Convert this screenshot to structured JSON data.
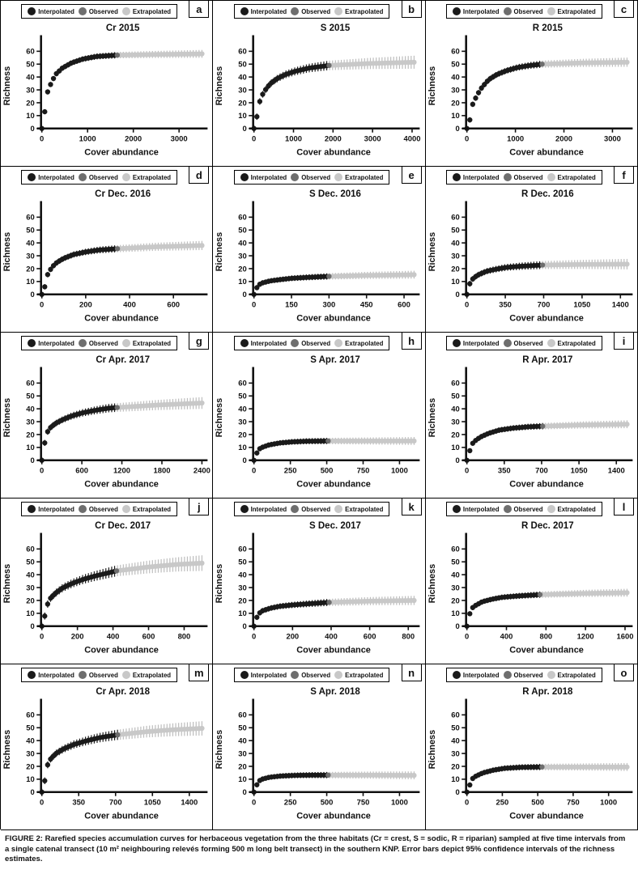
{
  "figure": {
    "caption": "FIGURE 2: Rarefied species accumulation curves for herbaceous vegetation from the three habitats (Cr = crest, S = sodic, R = riparian) sampled at five time intervals from a single catenal transect (10 m² neighbouring relevés forming 500 m long belt transect)  in the southern KNP. Error bars depict 95% confidence intervals of the richness estimates."
  },
  "chart_data": {
    "type": "scatter",
    "layout": {
      "rows": 5,
      "cols": 3,
      "grid_lines": false,
      "legend_position": "top-of-each-panel"
    },
    "xlabel": "Cover abundance",
    "ylabel": "Richness",
    "ylim": [
      0,
      70
    ],
    "yticks": [
      0,
      10,
      20,
      30,
      40,
      50,
      60
    ],
    "legend": [
      {
        "label": "Interpolated",
        "color": "#1a1a1a"
      },
      {
        "label": "Observed",
        "color": "#6e6e6e"
      },
      {
        "label": "Extrapolated",
        "color": "#c8c8c8"
      }
    ],
    "panels": [
      {
        "letter": "a",
        "title": "Cr 2015",
        "xticks": [
          0,
          1000,
          2000,
          3000
        ],
        "xmax": 3500,
        "transition_x": 1650,
        "err_end": 1.5,
        "points": [
          [
            0,
            0
          ],
          [
            30,
            1
          ],
          [
            100,
            26
          ],
          [
            200,
            35
          ],
          [
            300,
            42
          ],
          [
            450,
            47
          ],
          [
            650,
            51
          ],
          [
            900,
            54
          ],
          [
            1200,
            56
          ],
          [
            1650,
            57
          ],
          [
            2400,
            57.5
          ],
          [
            3500,
            58
          ]
        ]
      },
      {
        "letter": "b",
        "title": "S 2015",
        "xticks": [
          0,
          1000,
          2000,
          3000,
          4000
        ],
        "xmax": 4050,
        "transition_x": 1900,
        "err_end": 3.5,
        "points": [
          [
            0,
            0
          ],
          [
            40,
            1
          ],
          [
            110,
            18
          ],
          [
            210,
            26
          ],
          [
            310,
            31
          ],
          [
            420,
            35
          ],
          [
            600,
            39
          ],
          [
            800,
            42
          ],
          [
            1050,
            44.5
          ],
          [
            1400,
            47
          ],
          [
            1900,
            49
          ],
          [
            2900,
            50.5
          ],
          [
            4050,
            51.5
          ]
        ]
      },
      {
        "letter": "c",
        "title": "R 2015",
        "xticks": [
          0,
          1000,
          2000,
          3000
        ],
        "xmax": 3300,
        "transition_x": 1550,
        "err_end": 2,
        "points": [
          [
            0,
            0
          ],
          [
            35,
            1
          ],
          [
            110,
            18
          ],
          [
            210,
            26
          ],
          [
            310,
            32
          ],
          [
            450,
            38
          ],
          [
            620,
            42
          ],
          [
            820,
            45
          ],
          [
            1050,
            47.5
          ],
          [
            1300,
            49
          ],
          [
            1550,
            50
          ],
          [
            2400,
            51
          ],
          [
            3300,
            51.5
          ]
        ]
      },
      {
        "letter": "d",
        "title": "Cr Dec. 2016",
        "xticks": [
          0,
          200,
          400,
          600
        ],
        "xmax": 730,
        "transition_x": 345,
        "err_end": 2,
        "points": [
          [
            0,
            0
          ],
          [
            8,
            1
          ],
          [
            22,
            14
          ],
          [
            45,
            21
          ],
          [
            70,
            25
          ],
          [
            100,
            28
          ],
          [
            145,
            31
          ],
          [
            200,
            33
          ],
          [
            260,
            34.5
          ],
          [
            345,
            35.5
          ],
          [
            520,
            37
          ],
          [
            730,
            38
          ]
        ]
      },
      {
        "letter": "e",
        "title": "S Dec. 2016",
        "xticks": [
          0,
          150,
          300,
          450,
          600
        ],
        "xmax": 640,
        "transition_x": 300,
        "err_end": 1.5,
        "points": [
          [
            0,
            0
          ],
          [
            6,
            1
          ],
          [
            14,
            7
          ],
          [
            35,
            9
          ],
          [
            65,
            10.5
          ],
          [
            105,
            11.5
          ],
          [
            150,
            12.5
          ],
          [
            210,
            13.2
          ],
          [
            300,
            14
          ],
          [
            460,
            14.8
          ],
          [
            640,
            15.3
          ]
        ]
      },
      {
        "letter": "f",
        "title": "R Dec. 2016",
        "xticks": [
          0,
          350,
          700,
          1050,
          1400
        ],
        "xmax": 1460,
        "transition_x": 690,
        "err_end": 2.5,
        "points": [
          [
            0,
            0
          ],
          [
            12,
            1
          ],
          [
            30,
            10
          ],
          [
            65,
            13
          ],
          [
            110,
            15.5
          ],
          [
            180,
            18
          ],
          [
            260,
            19.5
          ],
          [
            360,
            21
          ],
          [
            510,
            22
          ],
          [
            690,
            22.8
          ],
          [
            1050,
            23.3
          ],
          [
            1460,
            23.5
          ]
        ]
      },
      {
        "letter": "g",
        "title": "Cr Apr. 2017",
        "xticks": [
          0,
          600,
          1200,
          1800,
          2400
        ],
        "xmax": 2400,
        "transition_x": 1130,
        "err_end": 3,
        "points": [
          [
            0,
            0
          ],
          [
            20,
            1
          ],
          [
            55,
            19.5
          ],
          [
            120,
            25
          ],
          [
            200,
            28.5
          ],
          [
            310,
            31.5
          ],
          [
            450,
            34.5
          ],
          [
            620,
            37
          ],
          [
            820,
            39
          ],
          [
            1000,
            40.5
          ],
          [
            1130,
            41
          ],
          [
            1750,
            43
          ],
          [
            2400,
            44.5
          ]
        ]
      },
      {
        "letter": "h",
        "title": "S Apr. 2017",
        "xticks": [
          0,
          250,
          500,
          750,
          1000
        ],
        "xmax": 1100,
        "transition_x": 510,
        "err_end": 1.5,
        "points": [
          [
            0,
            0
          ],
          [
            10,
            1
          ],
          [
            25,
            8
          ],
          [
            55,
            10
          ],
          [
            105,
            12
          ],
          [
            180,
            13.5
          ],
          [
            260,
            14.3
          ],
          [
            360,
            14.8
          ],
          [
            510,
            15
          ],
          [
            800,
            15
          ],
          [
            1100,
            15
          ]
        ]
      },
      {
        "letter": "i",
        "title": "R Apr. 2017",
        "xticks": [
          0,
          350,
          700,
          1050,
          1400
        ],
        "xmax": 1500,
        "transition_x": 710,
        "err_end": 1.5,
        "points": [
          [
            0,
            0
          ],
          [
            15,
            1
          ],
          [
            35,
            11.5
          ],
          [
            75,
            15
          ],
          [
            125,
            18
          ],
          [
            205,
            21
          ],
          [
            305,
            23.5
          ],
          [
            430,
            25
          ],
          [
            570,
            26
          ],
          [
            710,
            26.5
          ],
          [
            1100,
            27.5
          ],
          [
            1500,
            28
          ]
        ]
      },
      {
        "letter": "j",
        "title": "Cr Dec. 2017",
        "xticks": [
          0,
          200,
          400,
          600,
          800
        ],
        "xmax": 900,
        "transition_x": 420,
        "err_end": 4.5,
        "points": [
          [
            0,
            0
          ],
          [
            8,
            1
          ],
          [
            25,
            15
          ],
          [
            50,
            22
          ],
          [
            80,
            26
          ],
          [
            120,
            30
          ],
          [
            175,
            33.5
          ],
          [
            235,
            36.5
          ],
          [
            300,
            39
          ],
          [
            360,
            41
          ],
          [
            420,
            43
          ],
          [
            600,
            46
          ],
          [
            760,
            48
          ],
          [
            900,
            49
          ]
        ]
      },
      {
        "letter": "k",
        "title": "S Dec. 2017",
        "xticks": [
          0,
          200,
          400,
          600,
          800
        ],
        "xmax": 830,
        "transition_x": 390,
        "err_end": 2,
        "points": [
          [
            0,
            0
          ],
          [
            7,
            1
          ],
          [
            18,
            9
          ],
          [
            45,
            12
          ],
          [
            85,
            14
          ],
          [
            135,
            15.5
          ],
          [
            200,
            16.5
          ],
          [
            290,
            17.5
          ],
          [
            390,
            18.5
          ],
          [
            610,
            19.5
          ],
          [
            830,
            20
          ]
        ]
      },
      {
        "letter": "l",
        "title": "R Dec. 2017",
        "xticks": [
          0,
          400,
          800,
          1200,
          1600
        ],
        "xmax": 1620,
        "transition_x": 740,
        "err_end": 1.5,
        "points": [
          [
            0,
            0
          ],
          [
            15,
            1
          ],
          [
            35,
            13
          ],
          [
            85,
            16
          ],
          [
            155,
            19
          ],
          [
            255,
            21
          ],
          [
            360,
            22.5
          ],
          [
            520,
            23.5
          ],
          [
            740,
            24.5
          ],
          [
            1200,
            25.5
          ],
          [
            1620,
            26
          ]
        ]
      },
      {
        "letter": "m",
        "title": "Cr Apr. 2018",
        "xticks": [
          0,
          350,
          700,
          1050,
          1400
        ],
        "xmax": 1520,
        "transition_x": 720,
        "err_end": 4,
        "points": [
          [
            0,
            0
          ],
          [
            15,
            1
          ],
          [
            45,
            19.5
          ],
          [
            85,
            26
          ],
          [
            135,
            30
          ],
          [
            205,
            33.5
          ],
          [
            305,
            37
          ],
          [
            430,
            40
          ],
          [
            560,
            42.5
          ],
          [
            720,
            44.5
          ],
          [
            1000,
            47
          ],
          [
            1260,
            48.5
          ],
          [
            1520,
            49.5
          ]
        ]
      },
      {
        "letter": "n",
        "title": "S Apr. 2018",
        "xticks": [
          0,
          250,
          500,
          750,
          1000
        ],
        "xmax": 1100,
        "transition_x": 510,
        "err_end": 1.5,
        "points": [
          [
            0,
            0
          ],
          [
            10,
            1
          ],
          [
            25,
            8
          ],
          [
            55,
            10
          ],
          [
            105,
            11.5
          ],
          [
            185,
            12.5
          ],
          [
            285,
            13
          ],
          [
            400,
            13.2
          ],
          [
            510,
            13.2
          ],
          [
            800,
            13.2
          ],
          [
            1100,
            13
          ]
        ]
      },
      {
        "letter": "o",
        "title": "R Apr. 2018",
        "xticks": [
          0,
          250,
          500,
          750,
          1000
        ],
        "xmax": 1130,
        "transition_x": 530,
        "err_end": 1.5,
        "points": [
          [
            0,
            0
          ],
          [
            12,
            1
          ],
          [
            28,
            9.5
          ],
          [
            65,
            12.5
          ],
          [
            115,
            15
          ],
          [
            185,
            17
          ],
          [
            265,
            18.5
          ],
          [
            385,
            19.3
          ],
          [
            530,
            19.5
          ],
          [
            830,
            19.5
          ],
          [
            1130,
            19.5
          ]
        ]
      }
    ]
  }
}
